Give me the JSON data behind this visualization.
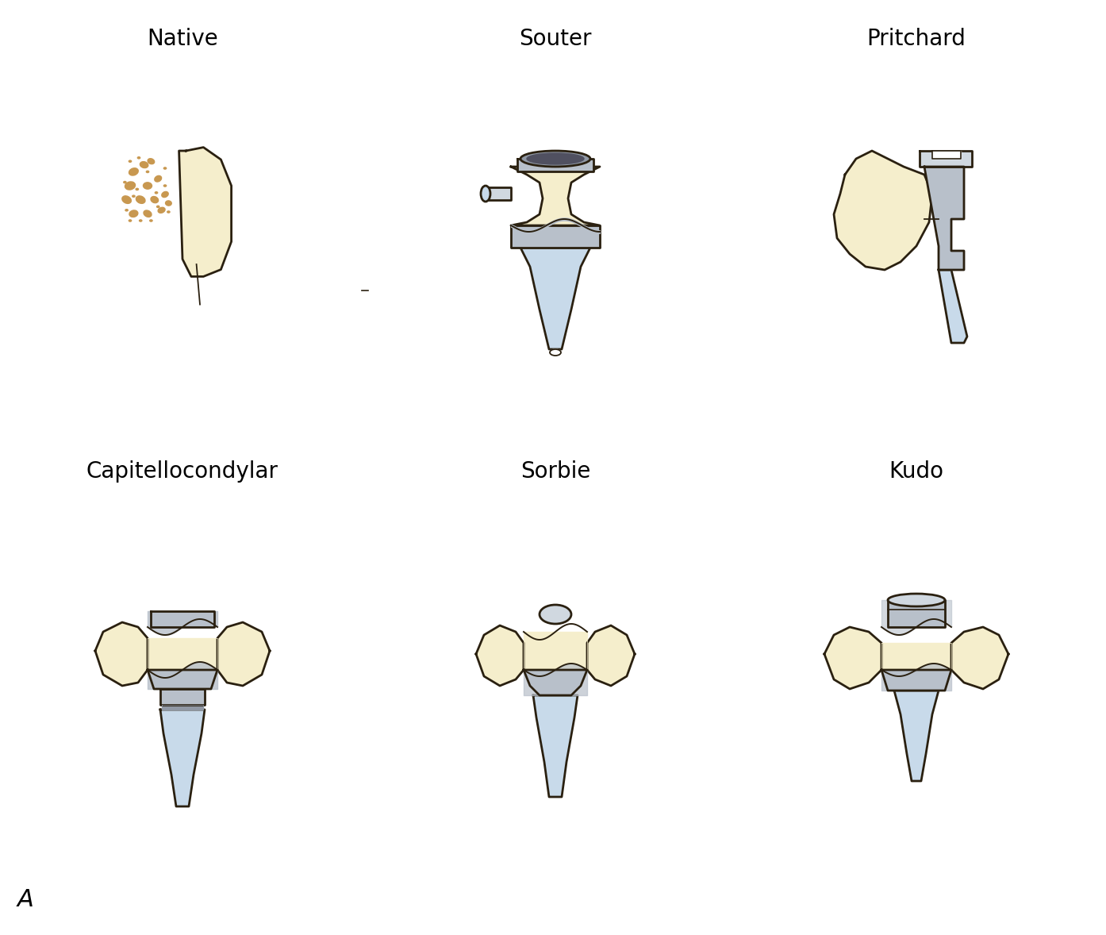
{
  "labels": [
    "Native",
    "Souter",
    "Pritchard",
    "Capitellocondylar",
    "Sorbie",
    "Kudo"
  ],
  "label_A": "A",
  "bone_fill": "#f5eecc",
  "bone_fill_light": "#faf6e4",
  "implant_blue": "#c8daea",
  "implant_blue_dark": "#a8c0d8",
  "implant_gray": "#b8c0ca",
  "implant_gray_dark": "#9098a4",
  "implant_gray_light": "#d0d8e0",
  "bone_edge": "#2a2010",
  "spots_color": "#c89850",
  "background": "#ffffff",
  "font_size": 20,
  "font_size_A": 22
}
